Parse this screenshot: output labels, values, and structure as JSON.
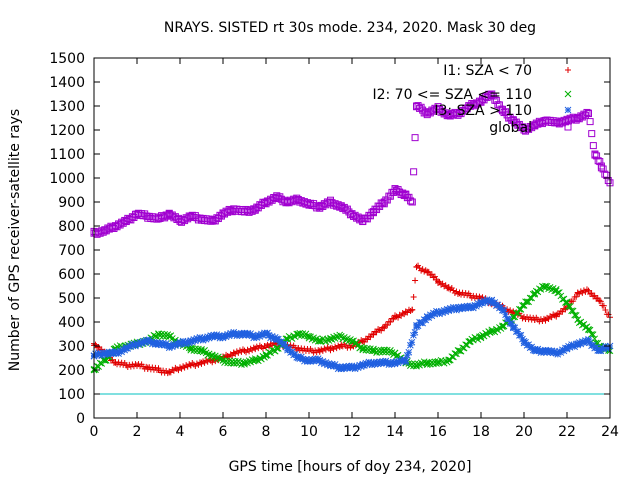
{
  "chart_data": {
    "type": "scatter",
    "title": "NRAYS. SISTED rt 30s mode. 234, 2020. Mask 30 deg",
    "xlabel": "GPS time [hours of doy 234, 2020]",
    "ylabel": "Number of GPS receiver-satellite rays",
    "xlim": [
      0,
      24
    ],
    "ylim": [
      0,
      1500
    ],
    "x_ticks": [
      0,
      2,
      4,
      6,
      8,
      10,
      12,
      14,
      16,
      18,
      20,
      22,
      24
    ],
    "y_ticks": [
      0,
      100,
      200,
      300,
      400,
      500,
      600,
      700,
      800,
      900,
      1000,
      1100,
      1200,
      1300,
      1400,
      1500
    ],
    "x_tick_labels": [
      "0",
      "2",
      "4",
      "6",
      "8",
      "10",
      "12",
      "14",
      "16",
      "18",
      "20",
      "22",
      "24"
    ],
    "y_tick_labels": [
      "0",
      "100",
      "200",
      "300",
      "400",
      "500",
      "600",
      "700",
      "800",
      "900",
      "1000",
      "1100",
      "1200",
      "1300",
      "1400",
      "1500"
    ],
    "reference_line": {
      "y": 100,
      "color": "#00c0c0"
    },
    "grid": false,
    "legend_position": "top-right",
    "series": [
      {
        "name": "I1: SZA < 70",
        "marker": "+",
        "color": "#e00000",
        "x": [
          0,
          0.5,
          1,
          1.5,
          2,
          2.5,
          3,
          3.5,
          4,
          4.5,
          5,
          5.5,
          6,
          6.5,
          7,
          7.5,
          8,
          8.5,
          9,
          9.5,
          10,
          10.5,
          11,
          11.5,
          12,
          12.5,
          13,
          13.5,
          14,
          14.5,
          14.8,
          15,
          15.5,
          16,
          16.5,
          17,
          17.5,
          18,
          18.5,
          19,
          19.5,
          20,
          20.5,
          21,
          21.5,
          22,
          22.5,
          23,
          23.5,
          24
        ],
        "y": [
          310,
          270,
          230,
          220,
          220,
          210,
          200,
          190,
          210,
          220,
          230,
          240,
          250,
          270,
          280,
          290,
          300,
          310,
          300,
          290,
          280,
          280,
          290,
          300,
          300,
          320,
          350,
          380,
          420,
          440,
          450,
          630,
          610,
          570,
          540,
          520,
          510,
          500,
          480,
          460,
          440,
          420,
          410,
          410,
          430,
          460,
          520,
          530,
          490,
          420
        ]
      },
      {
        "name": "I2: 70 <= SZA <= 110",
        "marker": "x",
        "color": "#00b000",
        "x": [
          0,
          0.5,
          1,
          1.5,
          2,
          2.5,
          3,
          3.5,
          4,
          4.5,
          5,
          5.5,
          6,
          6.5,
          7,
          7.5,
          8,
          8.5,
          9,
          9.5,
          10,
          10.5,
          11,
          11.5,
          12,
          12.5,
          13,
          13.5,
          14,
          14.5,
          15,
          15.5,
          16,
          16.5,
          17,
          17.5,
          18,
          18.5,
          19,
          19.5,
          20,
          20.5,
          21,
          21.5,
          22,
          22.5,
          23,
          23.5,
          24
        ],
        "y": [
          200,
          240,
          290,
          300,
          310,
          320,
          350,
          340,
          310,
          290,
          280,
          260,
          240,
          230,
          230,
          240,
          260,
          290,
          330,
          350,
          340,
          320,
          330,
          340,
          320,
          290,
          280,
          280,
          270,
          230,
          220,
          230,
          230,
          240,
          280,
          320,
          340,
          360,
          380,
          420,
          470,
          520,
          550,
          530,
          480,
          410,
          370,
          300,
          280
        ]
      },
      {
        "name": "I3: SZA > 110",
        "marker": "*",
        "color": "#2060e0",
        "x": [
          0,
          0.5,
          1,
          1.5,
          2,
          2.5,
          3,
          3.5,
          4,
          4.5,
          5,
          5.5,
          6,
          6.5,
          7,
          7.5,
          8,
          8.5,
          9,
          9.5,
          10,
          10.5,
          11,
          11.5,
          12,
          12.5,
          13,
          13.5,
          14,
          14.5,
          15,
          15.5,
          16,
          16.5,
          17,
          17.5,
          18,
          18.5,
          19,
          19.5,
          20,
          20.5,
          21,
          21.5,
          22,
          22.5,
          23,
          23.5,
          24
        ],
        "y": [
          260,
          270,
          270,
          290,
          310,
          320,
          310,
          300,
          310,
          320,
          330,
          340,
          340,
          350,
          350,
          340,
          350,
          330,
          290,
          250,
          240,
          240,
          220,
          210,
          210,
          220,
          230,
          230,
          230,
          240,
          380,
          420,
          440,
          450,
          460,
          460,
          480,
          490,
          450,
          380,
          320,
          280,
          280,
          270,
          290,
          310,
          320,
          280,
          300
        ]
      },
      {
        "name": "global",
        "marker": "square",
        "color": "#a000d0",
        "x": [
          0,
          0.5,
          1,
          1.5,
          2,
          2.5,
          3,
          3.5,
          4,
          4.5,
          5,
          5.5,
          6,
          6.5,
          7,
          7.5,
          8,
          8.5,
          9,
          9.5,
          10,
          10.5,
          11,
          11.5,
          12,
          12.5,
          13,
          13.5,
          14,
          14.5,
          14.8,
          15,
          15.5,
          16,
          16.5,
          17,
          17.5,
          18,
          18.5,
          19,
          19.5,
          20,
          20.5,
          21,
          21.5,
          22,
          22.5,
          23,
          23.3,
          23.6,
          24
        ],
        "y": [
          770,
          780,
          800,
          820,
          850,
          840,
          830,
          850,
          820,
          840,
          830,
          820,
          850,
          870,
          860,
          870,
          900,
          920,
          900,
          910,
          890,
          880,
          900,
          880,
          850,
          820,
          860,
          900,
          950,
          930,
          900,
          1300,
          1270,
          1290,
          1260,
          1270,
          1300,
          1320,
          1350,
          1280,
          1240,
          1200,
          1220,
          1240,
          1230,
          1240,
          1250,
          1270,
          1100,
          1050,
          980
        ]
      }
    ]
  }
}
